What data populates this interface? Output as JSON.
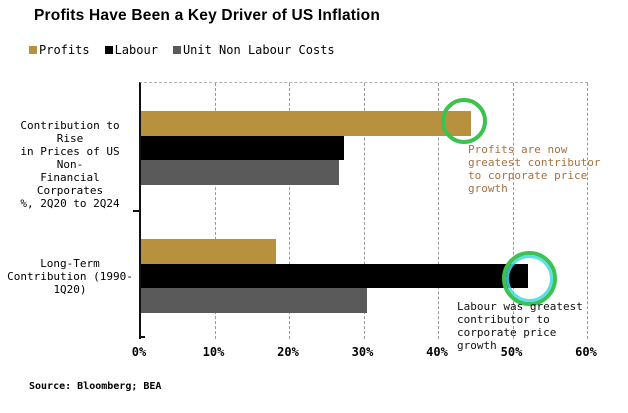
{
  "chart_data": {
    "type": "bar",
    "orientation": "horizontal",
    "title": "Profits Have Been a Key Driver of US Inflation",
    "categories": [
      "Contribution to Rise in Prices of US Non-Financial Corporates %, 2Q20 to 2Q24",
      "Long-Term Contribution (1990-1Q20)"
    ],
    "category_labels_display": [
      "Contribution to Rise\nin Prices of US Non-\nFinancial Corporates\n%, 2Q20 to 2Q24",
      "Long-Term\nContribution (1990-\n1Q20)"
    ],
    "series": [
      {
        "name": "Profits",
        "color": "#b8913f",
        "values": [
          44.3,
          18.1
        ]
      },
      {
        "name": "Labour",
        "color": "#000000",
        "values": [
          27.2,
          51.9
        ]
      },
      {
        "name": "Unit Non Labour Costs",
        "color": "#5a5a5a",
        "values": [
          26.6,
          30.4
        ]
      }
    ],
    "xlim": [
      0,
      60
    ],
    "ticks": [
      0,
      10,
      20,
      30,
      40,
      50,
      60
    ],
    "tick_labels": [
      "0%",
      "10%",
      "20%",
      "30%",
      "40%",
      "50%",
      "60%"
    ],
    "grid": "vertical-dashed",
    "legend_position": "top-left"
  },
  "legend": [
    {
      "label": "Profits",
      "color": "#b8913f"
    },
    {
      "label": "Labour",
      "color": "#000000"
    },
    {
      "label": "Unit Non Labour Costs",
      "color": "#5a5a5a"
    }
  ],
  "annotations": [
    {
      "text": "Profits are now\ngreatest contributor\nto corporate price\ngrowth",
      "color": "#a9713f"
    },
    {
      "text": "Labour was greatest\ncontributor to\ncorporate price\ngrowth",
      "color": "#111111"
    }
  ],
  "highlight_circles": [
    {
      "target": "profits-bar-group1-end",
      "stroke": "#3cc24e"
    },
    {
      "target": "labour-bar-group2-end",
      "stroke": "#3cc24e",
      "inner_stroke": "#40d8e8"
    }
  ],
  "source": "Source: Bloomberg; BEA"
}
